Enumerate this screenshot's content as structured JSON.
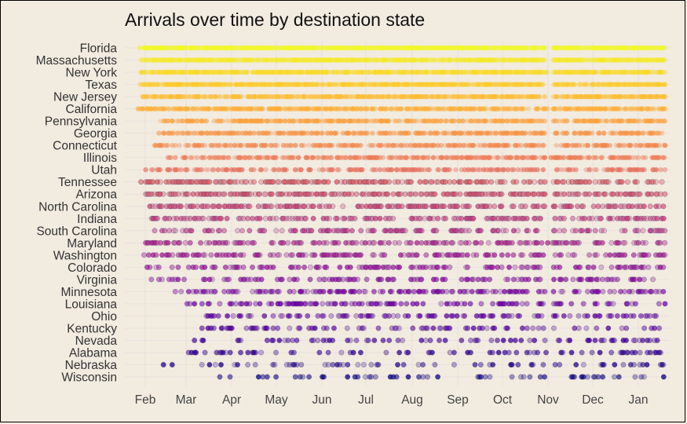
{
  "chart_data": {
    "type": "scatter",
    "title": "Arrivals over time by destination state",
    "xlabel": "",
    "ylabel": "",
    "grid": true,
    "legend": "none",
    "x_ticks": [
      "Feb",
      "Mar",
      "Apr",
      "May",
      "Jun",
      "Jul",
      "Aug",
      "Sep",
      "Oct",
      "Nov",
      "Dec",
      "Jan"
    ],
    "x_range": [
      "Jan 26",
      "Jan 31 (following year)"
    ],
    "point_density_scale": "approximate share of days with an arrival, 0-1",
    "series": [
      {
        "name": "Florida",
        "density": 0.99,
        "start": "Jan 27"
      },
      {
        "name": "Massachusetts",
        "density": 0.95,
        "start": "Jan 28"
      },
      {
        "name": "New York",
        "density": 0.93,
        "start": "Jan 28"
      },
      {
        "name": "Texas",
        "density": 0.92,
        "start": "Jan 27"
      },
      {
        "name": "New Jersey",
        "density": 0.85,
        "start": "Jan 28"
      },
      {
        "name": "California",
        "density": 0.85,
        "start": "Jan 26"
      },
      {
        "name": "Pennsylvania",
        "density": 0.72,
        "start": "Feb 10"
      },
      {
        "name": "Georgia",
        "density": 0.7,
        "start": "Feb 8"
      },
      {
        "name": "Connecticut",
        "density": 0.65,
        "start": "Feb 5"
      },
      {
        "name": "Illinois",
        "density": 0.62,
        "start": "Feb 15"
      },
      {
        "name": "Utah",
        "density": 0.55,
        "start": "Jan 27"
      },
      {
        "name": "Tennessee",
        "density": 0.52,
        "start": "Jan 28"
      },
      {
        "name": "Arizona",
        "density": 0.52,
        "start": "Jan 25"
      },
      {
        "name": "North Carolina",
        "density": 0.48,
        "start": "Feb 3"
      },
      {
        "name": "Indiana",
        "density": 0.45,
        "start": "Feb 4"
      },
      {
        "name": "South Carolina",
        "density": 0.42,
        "start": "Feb 5"
      },
      {
        "name": "Maryland",
        "density": 0.4,
        "start": "Jan 28"
      },
      {
        "name": "Washington",
        "density": 0.38,
        "start": "Jan 29"
      },
      {
        "name": "Colorado",
        "density": 0.35,
        "start": "Feb 1"
      },
      {
        "name": "Virginia",
        "density": 0.33,
        "start": "Feb 3"
      },
      {
        "name": "Minnesota",
        "density": 0.35,
        "start": "Feb 20"
      },
      {
        "name": "Louisiana",
        "density": 0.3,
        "start": "Feb 28"
      },
      {
        "name": "Ohio",
        "density": 0.28,
        "start": "Mar 10"
      },
      {
        "name": "Kentucky",
        "density": 0.26,
        "start": "Mar 1"
      },
      {
        "name": "Nevada",
        "density": 0.25,
        "start": "Mar 1"
      },
      {
        "name": "Alabama",
        "density": 0.2,
        "start": "Mar 1"
      },
      {
        "name": "Nebraska",
        "density": 0.2,
        "start": "Feb 1"
      },
      {
        "name": "Wisconsin",
        "density": 0.15,
        "start": "Mar 5"
      }
    ],
    "colors": {
      "gradient": [
        "#f0f921",
        "#fdca26",
        "#fb9f3a",
        "#ed7953",
        "#d8576b",
        "#bd3786",
        "#9c179e",
        "#7201a8",
        "#46039f",
        "#0d0887"
      ],
      "background": "#f2ebe0",
      "grid": "#e6e2dc"
    }
  }
}
